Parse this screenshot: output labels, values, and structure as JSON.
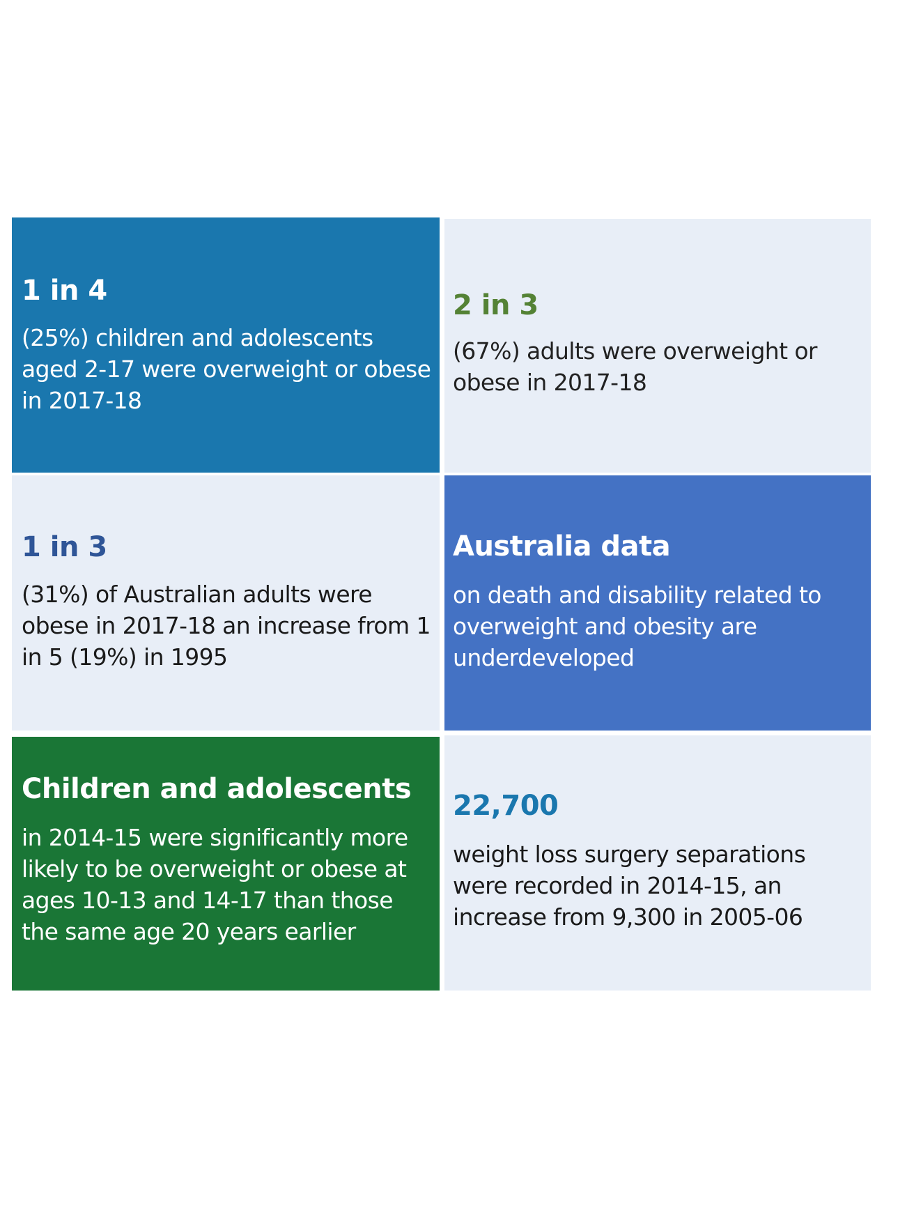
{
  "tiles": {
    "children_ratio": {
      "headline": "1 in 4",
      "body": "(25%) children and adolescents aged 2-17 were overweight or obese in 2017-18",
      "background": "#1a77ae"
    },
    "adults_ratio": {
      "headline": "2 in 3",
      "body": "(67%) adults were overweight or obese in 2017-18",
      "background": "#e8eef7",
      "accent": "#548235"
    },
    "obese_adults": {
      "headline": "1 in 3",
      "body": "(31%) of Australian adults were obese in 2017-18 an increase from 1 in 5 (19%) in 1995",
      "background": "#e8eef7",
      "accent": "#2f5597"
    },
    "australia_data": {
      "headline": "Australia data",
      "body": "on death and disability related to overweight and obesity are underdeveloped",
      "background": "#4472c4"
    },
    "children_trend": {
      "headline": "Children and adolescents",
      "body": "in 2014-15 were significantly more likely to be overweight or obese at ages 10-13 and 14-17 than those the same age 20 years earlier",
      "background": "#1a7636"
    },
    "surgery": {
      "headline": "22,700",
      "body": "weight loss surgery separations were recorded in 2014-15, an increase from 9,300 in 2005-06",
      "background": "#e8eef7",
      "accent": "#1a77ae"
    }
  }
}
